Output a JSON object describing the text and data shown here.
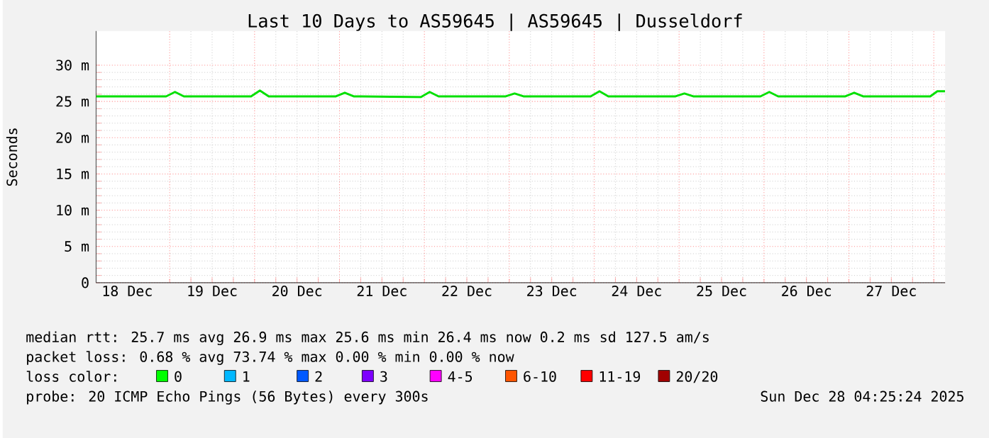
{
  "chart_data": {
    "type": "line",
    "title": "Last 10 Days to AS59645 | AS59645 | Dusseldorf",
    "ylabel": "Seconds",
    "x": [
      "2025-12-18T03:12",
      "2025-12-18T23:00",
      "2025-12-19T01:30",
      "2025-12-19T04:00",
      "2025-12-19T23:00",
      "2025-12-20T01:30",
      "2025-12-20T04:00",
      "2025-12-20T23:00",
      "2025-12-21T01:30",
      "2025-12-21T04:00",
      "2025-12-21T23:00",
      "2025-12-22T01:30",
      "2025-12-22T04:00",
      "2025-12-22T23:00",
      "2025-12-23T01:30",
      "2025-12-23T04:00",
      "2025-12-23T23:00",
      "2025-12-24T01:30",
      "2025-12-24T04:00",
      "2025-12-24T23:00",
      "2025-12-25T01:30",
      "2025-12-25T04:00",
      "2025-12-25T23:00",
      "2025-12-26T01:30",
      "2025-12-26T04:00",
      "2025-12-26T23:00",
      "2025-12-27T01:30",
      "2025-12-27T04:00",
      "2025-12-27T23:00",
      "2025-12-28T01:00",
      "2025-12-28T03:12"
    ],
    "series": [
      {
        "color": "#00e000",
        "values": [
          25.7,
          25.7,
          26.3,
          25.7,
          25.7,
          26.5,
          25.7,
          25.7,
          26.2,
          25.7,
          25.6,
          26.3,
          25.7,
          25.7,
          26.1,
          25.7,
          25.7,
          26.4,
          25.7,
          25.7,
          26.1,
          25.7,
          25.7,
          26.3,
          25.7,
          25.7,
          26.2,
          25.7,
          25.7,
          26.4,
          26.4
        ]
      }
    ],
    "xlim": [
      "2025-12-18T03:12",
      "2025-12-28T03:12"
    ],
    "xticks": [
      {
        "value": "2025-12-19T00:00",
        "label": null
      },
      {
        "value": "2025-12-20T00:00",
        "label": null
      },
      {
        "value": "2025-12-21T00:00",
        "label": null
      },
      {
        "value": "2025-12-22T00:00",
        "label": null
      },
      {
        "value": "2025-12-23T00:00",
        "label": null
      },
      {
        "value": "2025-12-24T00:00",
        "label": null
      },
      {
        "value": "2025-12-25T00:00",
        "label": null
      },
      {
        "value": "2025-12-26T00:00",
        "label": null
      },
      {
        "value": "2025-12-27T00:00",
        "label": null
      },
      {
        "value": "2025-12-28T00:00",
        "label": null
      },
      {
        "value": "2025-12-18T12:00",
        "label": "18 Dec"
      },
      {
        "value": "2025-12-19T12:00",
        "label": "19 Dec"
      },
      {
        "value": "2025-12-20T12:00",
        "label": "20 Dec"
      },
      {
        "value": "2025-12-21T12:00",
        "label": "21 Dec"
      },
      {
        "value": "2025-12-22T12:00",
        "label": "22 Dec"
      },
      {
        "value": "2025-12-23T12:00",
        "label": "23 Dec"
      },
      {
        "value": "2025-12-24T12:00",
        "label": "24 Dec"
      },
      {
        "value": "2025-12-25T12:00",
        "label": "25 Dec"
      },
      {
        "value": "2025-12-26T12:00",
        "label": "26 Dec"
      },
      {
        "value": "2025-12-27T12:00",
        "label": "27 Dec"
      }
    ],
    "ylim": [
      0,
      34.7
    ],
    "yticks": [
      0,
      {
        "value": 5,
        "label": "5 m"
      },
      {
        "value": 10,
        "label": "10 m"
      },
      {
        "value": 15,
        "label": "15 m"
      },
      {
        "value": 20,
        "label": "20 m"
      },
      {
        "value": 25,
        "label": "25 m"
      },
      {
        "value": 30,
        "label": "30 m"
      }
    ],
    "grid": true,
    "annotations": [
      "median rtt:  25.7 ms avg  26.9 ms max  25.6 ms min  26.4 ms now  0.2 ms sd  127.5   am/s",
      "packet loss: 0.68 % avg  73.74 % max  0.00 % min  0.00 % now",
      "loss color:",
      "0",
      "1",
      "2",
      "3",
      "4-5",
      "6-10",
      "11-19",
      "20/20",
      "probe:       20 ICMP Echo Pings (56 Bytes) every 300s",
      "Sun Dec 28 04:25:24 2025"
    ]
  }
}
